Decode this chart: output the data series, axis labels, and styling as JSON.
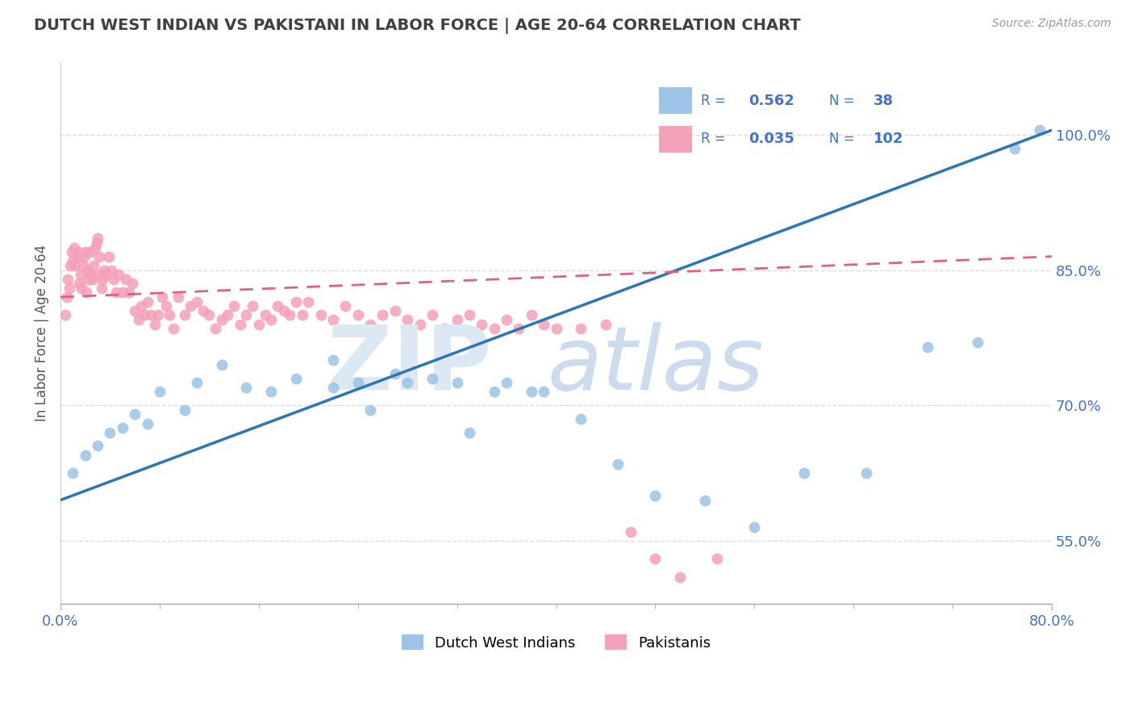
{
  "title": "DUTCH WEST INDIAN VS PAKISTANI IN LABOR FORCE | AGE 20-64 CORRELATION CHART",
  "source": "Source: ZipAtlas.com",
  "xlim": [
    0.0,
    0.8
  ],
  "ylim": [
    0.48,
    1.08
  ],
  "yticks": [
    0.55,
    0.7,
    0.85,
    1.0
  ],
  "series1_label": "Dutch West Indians",
  "series1_dot_color": "#9dc3e6",
  "series1_R": 0.562,
  "series1_N": 38,
  "series1_line_color": "#2e75b6",
  "series2_label": "Pakistanis",
  "series2_dot_color": "#f4a0b8",
  "series2_R": 0.035,
  "series2_N": 102,
  "series2_line_color": "#e06080",
  "background_color": "#ffffff",
  "grid_color": "#cccccc",
  "title_color": "#404040",
  "ylabel_text": "In Labor Force | Age 20-64",
  "blue_scatter_x": [
    0.01,
    0.02,
    0.03,
    0.04,
    0.05,
    0.06,
    0.07,
    0.08,
    0.1,
    0.11,
    0.13,
    0.15,
    0.17,
    0.19,
    0.22,
    0.24,
    0.27,
    0.3,
    0.33,
    0.36,
    0.39,
    0.22,
    0.25,
    0.28,
    0.32,
    0.35,
    0.38,
    0.42,
    0.45,
    0.48,
    0.52,
    0.56,
    0.6,
    0.65,
    0.7,
    0.74,
    0.77,
    0.79
  ],
  "blue_scatter_y": [
    0.625,
    0.645,
    0.655,
    0.67,
    0.675,
    0.69,
    0.68,
    0.715,
    0.695,
    0.725,
    0.745,
    0.72,
    0.715,
    0.73,
    0.75,
    0.725,
    0.735,
    0.73,
    0.67,
    0.725,
    0.715,
    0.72,
    0.695,
    0.725,
    0.725,
    0.715,
    0.715,
    0.685,
    0.635,
    0.6,
    0.595,
    0.565,
    0.625,
    0.625,
    0.765,
    0.77,
    0.985,
    1.005
  ],
  "pink_scatter_x": [
    0.004,
    0.005,
    0.006,
    0.007,
    0.008,
    0.009,
    0.01,
    0.011,
    0.012,
    0.013,
    0.014,
    0.015,
    0.016,
    0.017,
    0.018,
    0.019,
    0.02,
    0.021,
    0.022,
    0.023,
    0.024,
    0.025,
    0.026,
    0.027,
    0.028,
    0.029,
    0.03,
    0.031,
    0.032,
    0.033,
    0.034,
    0.035,
    0.037,
    0.039,
    0.041,
    0.043,
    0.045,
    0.047,
    0.05,
    0.053,
    0.055,
    0.058,
    0.06,
    0.063,
    0.065,
    0.068,
    0.07,
    0.073,
    0.076,
    0.079,
    0.082,
    0.085,
    0.088,
    0.091,
    0.095,
    0.1,
    0.105,
    0.11,
    0.115,
    0.12,
    0.125,
    0.13,
    0.135,
    0.14,
    0.145,
    0.15,
    0.155,
    0.16,
    0.165,
    0.17,
    0.175,
    0.18,
    0.185,
    0.19,
    0.195,
    0.2,
    0.21,
    0.22,
    0.23,
    0.24,
    0.25,
    0.26,
    0.27,
    0.28,
    0.29,
    0.3,
    0.31,
    0.32,
    0.33,
    0.34,
    0.35,
    0.36,
    0.37,
    0.38,
    0.39,
    0.4,
    0.42,
    0.44,
    0.46,
    0.48,
    0.5,
    0.53
  ],
  "pink_scatter_y": [
    0.8,
    0.82,
    0.84,
    0.83,
    0.855,
    0.87,
    0.86,
    0.875,
    0.855,
    0.865,
    0.87,
    0.835,
    0.845,
    0.83,
    0.855,
    0.865,
    0.87,
    0.825,
    0.85,
    0.84,
    0.87,
    0.845,
    0.84,
    0.855,
    0.875,
    0.88,
    0.885,
    0.865,
    0.845,
    0.83,
    0.84,
    0.85,
    0.845,
    0.865,
    0.85,
    0.84,
    0.825,
    0.845,
    0.825,
    0.84,
    0.825,
    0.835,
    0.805,
    0.795,
    0.81,
    0.8,
    0.815,
    0.8,
    0.79,
    0.8,
    0.82,
    0.81,
    0.8,
    0.785,
    0.82,
    0.8,
    0.81,
    0.815,
    0.805,
    0.8,
    0.785,
    0.795,
    0.8,
    0.81,
    0.79,
    0.8,
    0.81,
    0.79,
    0.8,
    0.795,
    0.81,
    0.805,
    0.8,
    0.815,
    0.8,
    0.815,
    0.8,
    0.795,
    0.81,
    0.8,
    0.79,
    0.8,
    0.805,
    0.795,
    0.79,
    0.8,
    0.785,
    0.795,
    0.8,
    0.79,
    0.785,
    0.795,
    0.785,
    0.8,
    0.79,
    0.785,
    0.785,
    0.79,
    0.56,
    0.53,
    0.51,
    0.53
  ],
  "blue_line_x0": 0.0,
  "blue_line_x1": 0.8,
  "blue_line_y0": 0.595,
  "blue_line_y1": 1.005,
  "pink_line_x0": 0.0,
  "pink_line_x1": 0.8,
  "pink_line_y0": 0.82,
  "pink_line_y1": 0.865
}
